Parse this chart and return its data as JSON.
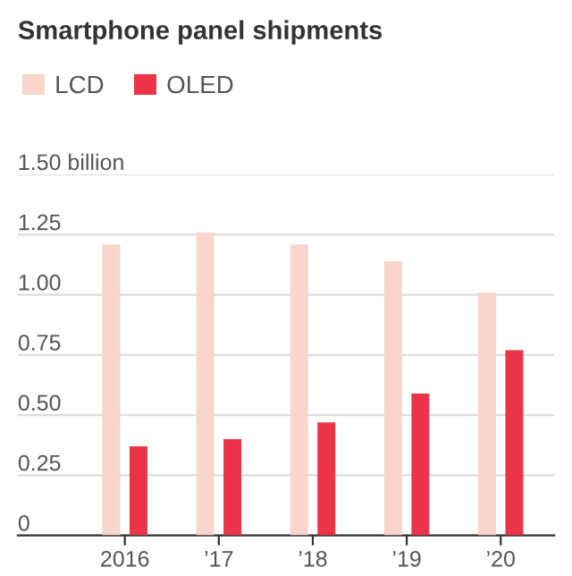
{
  "chart_data": {
    "type": "bar",
    "title": "Smartphone panel shipments",
    "categories": [
      "2016",
      "’17",
      "’18",
      "’19",
      "’20"
    ],
    "series": [
      {
        "name": "LCD",
        "color": "#f9d5cb",
        "values": [
          1.21,
          1.26,
          1.21,
          1.14,
          1.01
        ]
      },
      {
        "name": "OLED",
        "color": "#ec3448",
        "values": [
          0.37,
          0.4,
          0.47,
          0.59,
          0.77
        ]
      }
    ],
    "ylim": [
      0,
      1.5
    ],
    "yticks": [
      0,
      0.25,
      {
        "value": 0.5,
        "label": "0.50"
      },
      0.75,
      {
        "value": 1.0,
        "label": "1.00"
      },
      1.25,
      {
        "value": 1.5,
        "label": "1.50 billion"
      }
    ],
    "grid": "y",
    "legend": "top left"
  }
}
